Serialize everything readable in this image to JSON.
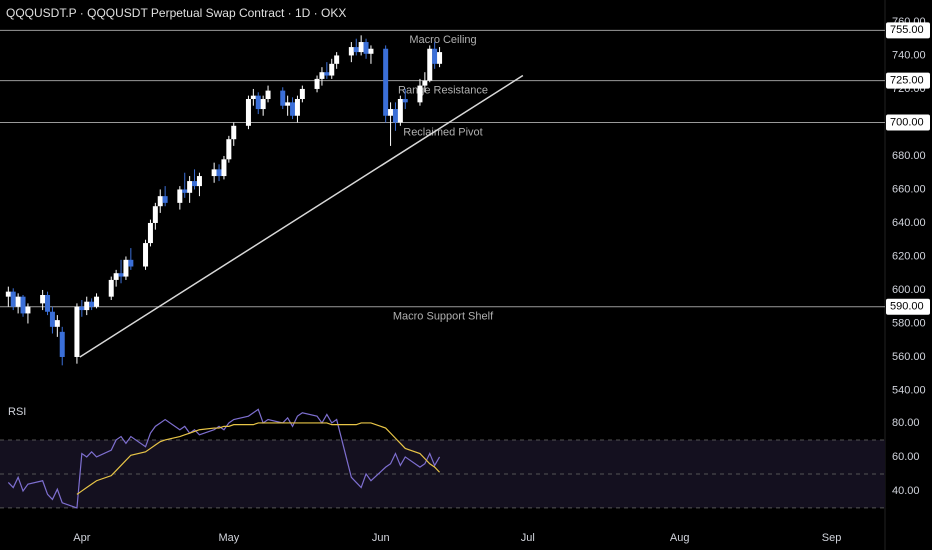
{
  "chart_data": [
    {
      "type": "candlestick",
      "title": "QQQUSDT.P · QQQUSDT Perpetual Swap Contract · 1D · OKX",
      "up_color": "#ffffff",
      "down_color": "#3b6fd8",
      "x": [
        76,
        77,
        78,
        79,
        80,
        83,
        84,
        85,
        86,
        87,
        90,
        91,
        92,
        93,
        94,
        97,
        98,
        99,
        100,
        101,
        104,
        105,
        106,
        107,
        108,
        111,
        112,
        113,
        114,
        115,
        118,
        119,
        120,
        121,
        122,
        125,
        126,
        127,
        128,
        129,
        132,
        133,
        134,
        135,
        136,
        139,
        140,
        141,
        142,
        143,
        146,
        147,
        148,
        149,
        150,
        153,
        154,
        155,
        156,
        157,
        160,
        161,
        162,
        163,
        164
      ],
      "open": [
        596,
        599,
        590,
        596,
        586,
        592,
        597,
        587,
        578,
        575,
        560,
        590,
        588,
        593,
        590,
        596,
        606,
        610,
        608,
        618,
        614,
        628,
        640,
        650,
        656,
        652,
        660,
        658,
        665,
        662,
        668,
        672,
        668,
        678,
        690,
        698,
        714,
        716,
        708,
        714,
        719,
        710,
        712,
        704,
        714,
        720,
        726,
        730,
        728,
        735,
        740,
        745,
        742,
        748,
        741,
        744,
        704,
        708,
        700,
        714,
        712,
        722,
        725,
        744,
        735
      ],
      "high": [
        602,
        601,
        598,
        597,
        592,
        600,
        599,
        590,
        585,
        578,
        592,
        594,
        596,
        595,
        598,
        608,
        612,
        618,
        620,
        625,
        630,
        642,
        652,
        660,
        662,
        662,
        670,
        668,
        672,
        670,
        676,
        675,
        680,
        692,
        700,
        716,
        720,
        718,
        716,
        722,
        721,
        716,
        715,
        716,
        722,
        728,
        733,
        736,
        738,
        742,
        748,
        750,
        752,
        750,
        746,
        746,
        712,
        712,
        716,
        720,
        726,
        730,
        746,
        748,
        745
      ],
      "low": [
        590,
        588,
        586,
        584,
        580,
        588,
        585,
        574,
        572,
        555,
        556,
        584,
        585,
        588,
        589,
        594,
        602,
        604,
        606,
        612,
        612,
        626,
        636,
        646,
        650,
        648,
        655,
        652,
        660,
        656,
        664,
        665,
        666,
        676,
        686,
        696,
        710,
        705,
        704,
        712,
        708,
        704,
        702,
        700,
        712,
        718,
        722,
        726,
        726,
        732,
        736,
        740,
        740,
        738,
        735,
        700,
        686,
        695,
        698,
        708,
        710,
        718,
        724,
        732,
        733
      ],
      "close": [
        599,
        590,
        596,
        586,
        590,
        597,
        587,
        578,
        582,
        560,
        590,
        588,
        593,
        590,
        596,
        606,
        610,
        608,
        618,
        614,
        628,
        640,
        650,
        656,
        652,
        660,
        658,
        665,
        662,
        668,
        672,
        668,
        678,
        690,
        698,
        714,
        716,
        708,
        714,
        719,
        710,
        712,
        704,
        714,
        720,
        726,
        730,
        728,
        735,
        740,
        745,
        742,
        748,
        741,
        744,
        704,
        708,
        700,
        714,
        712,
        722,
        725,
        744,
        735,
        742
      ],
      "xlim": [
        74.3,
        254.9
      ],
      "xticks": [
        {
          "value": 91,
          "label": "Apr"
        },
        {
          "value": 121,
          "label": "May"
        },
        {
          "value": 152,
          "label": "Jun"
        },
        {
          "value": 182,
          "label": "Jul"
        },
        {
          "value": 213,
          "label": "Aug"
        },
        {
          "value": 244,
          "label": "Sep"
        }
      ],
      "ylim": [
        537.3,
        773.1
      ],
      "yticks": [
        {
          "value": 760,
          "label": "760.00"
        },
        {
          "value": 740,
          "label": "740.00"
        },
        {
          "value": 720,
          "label": "720.00"
        },
        {
          "value": 680,
          "label": "680.00"
        },
        {
          "value": 660,
          "label": "660.00"
        },
        {
          "value": 640,
          "label": "640.00"
        },
        {
          "value": 620,
          "label": "620.00"
        },
        {
          "value": 600,
          "label": "600.00"
        },
        {
          "value": 580,
          "label": "580.00"
        },
        {
          "value": 560,
          "label": "560.00"
        },
        {
          "value": 540,
          "label": "540.00"
        }
      ],
      "levels": [
        {
          "value": 755,
          "label": "755.00",
          "text": "Macro Ceiling"
        },
        {
          "value": 725,
          "label": "725.00",
          "text": "Range Resistance"
        },
        {
          "value": 700,
          "label": "700.00",
          "text": "Reclaimed Pivot"
        },
        {
          "value": 590,
          "label": "590.00",
          "text": "Macro Support Shelf"
        }
      ],
      "trendline": {
        "x": [
          90.6,
          181
        ],
        "y": [
          560,
          728
        ]
      }
    },
    {
      "type": "line",
      "title": "RSI",
      "series": [
        {
          "color": "#7e6fd0",
          "values": [
            45,
            42,
            48,
            40,
            44,
            46,
            38,
            35,
            41,
            33,
            30,
            62,
            60,
            63,
            60,
            64,
            70,
            72,
            68,
            72,
            66,
            74,
            78,
            80,
            82,
            76,
            78,
            74,
            76,
            73,
            76,
            78,
            76,
            80,
            82,
            84,
            86,
            88,
            80,
            82,
            80,
            83,
            78,
            84,
            86,
            84,
            80,
            85,
            80,
            82,
            48,
            45,
            42,
            50,
            46,
            54,
            56,
            62,
            55,
            60,
            54,
            56,
            62,
            55,
            60
          ]
        },
        {
          "color": "#e8c547",
          "values": [
            null,
            null,
            null,
            null,
            null,
            null,
            null,
            null,
            null,
            null,
            38,
            40,
            42,
            44,
            46,
            49,
            52,
            55,
            58,
            61,
            63,
            65,
            67,
            69,
            70,
            72,
            73,
            74,
            75,
            76,
            77,
            77,
            78,
            78,
            79,
            79,
            79,
            80,
            80,
            80,
            80,
            80,
            80,
            80,
            80,
            80,
            80,
            80,
            79,
            79,
            79,
            79,
            80,
            80,
            80,
            77,
            74,
            71,
            68,
            65,
            62,
            59,
            56,
            54,
            51
          ]
        }
      ],
      "ylim": [
        22.9,
        93.5
      ],
      "yticks": [
        {
          "value": 80,
          "label": "80.00"
        },
        {
          "value": 60,
          "label": "60.00"
        },
        {
          "value": 40,
          "label": "40.00"
        }
      ],
      "bands": [
        70,
        50,
        30
      ]
    }
  ]
}
